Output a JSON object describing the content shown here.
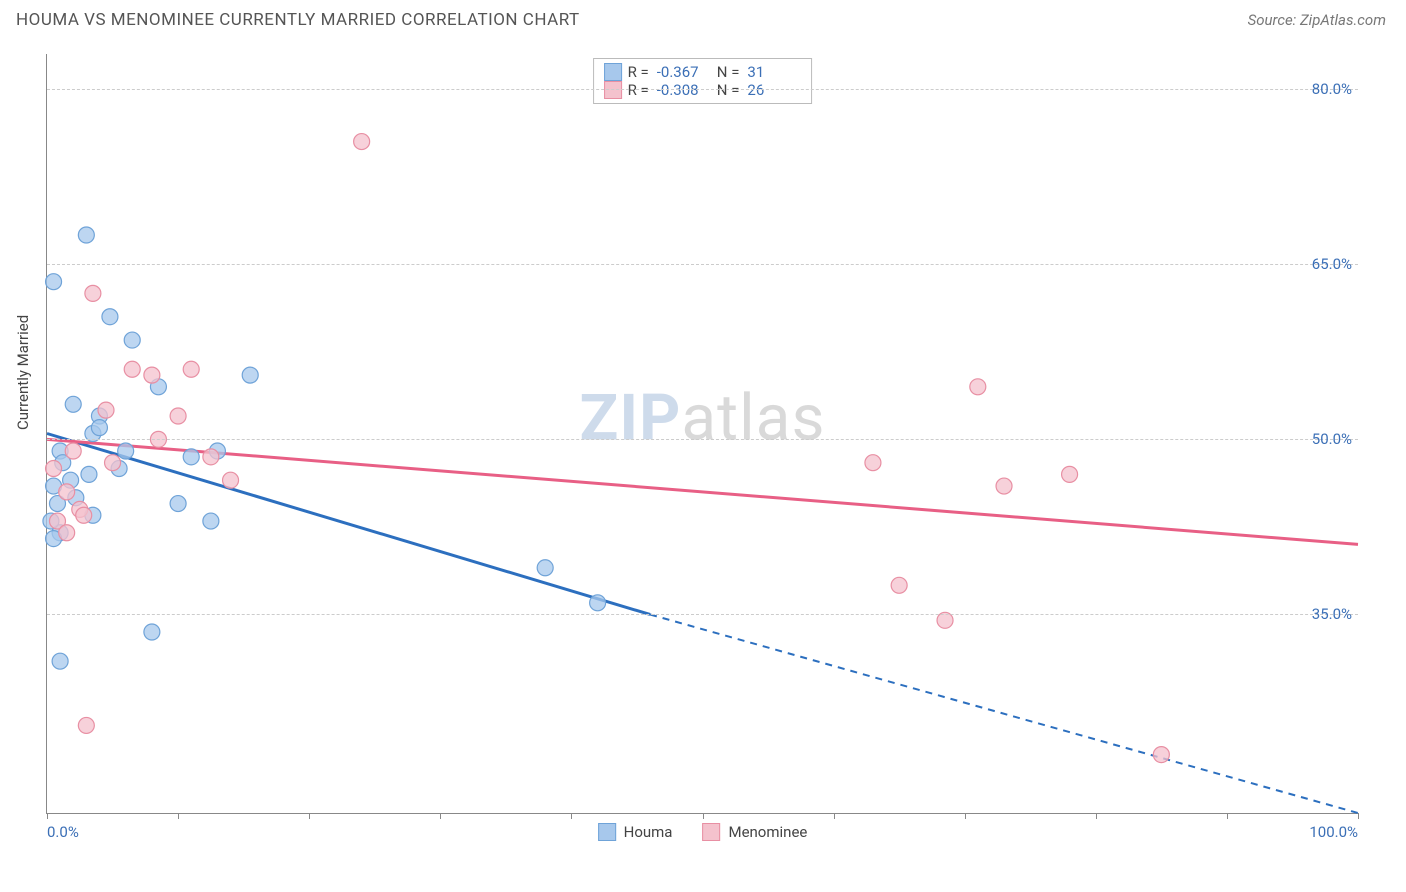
{
  "title": "HOUMA VS MENOMINEE CURRENTLY MARRIED CORRELATION CHART",
  "source": "Source: ZipAtlas.com",
  "y_axis_label": "Currently Married",
  "watermark": {
    "bold": "ZIP",
    "rest": "atlas"
  },
  "chart": {
    "type": "scatter",
    "xlim": [
      0,
      100
    ],
    "ylim": [
      18,
      83
    ],
    "x_ticks": [
      0,
      10,
      20,
      30,
      40,
      50,
      60,
      70,
      80,
      90,
      100
    ],
    "x_tick_labels": {
      "0": "0.0%",
      "100": "100.0%"
    },
    "y_grid": [
      35,
      50,
      65,
      80
    ],
    "y_tick_labels": {
      "35": "35.0%",
      "50": "50.0%",
      "65": "65.0%",
      "80": "80.0%"
    },
    "grid_color": "#cccccc",
    "axis_color": "#888888",
    "background_color": "#ffffff",
    "marker_radius": 8,
    "marker_stroke_width": 1.2,
    "series": [
      {
        "name": "Houma",
        "color_fill": "#a7c8ec",
        "color_stroke": "#6fa3d8",
        "line_color": "#2c6fbf",
        "line_width": 3,
        "r_value": "-0.367",
        "n_value": "31",
        "points": [
          [
            0.5,
            63.5
          ],
          [
            3.0,
            67.5
          ],
          [
            1.0,
            49.0
          ],
          [
            1.2,
            48.0
          ],
          [
            4.8,
            60.5
          ],
          [
            6.5,
            58.5
          ],
          [
            0.8,
            44.5
          ],
          [
            3.5,
            50.5
          ],
          [
            2.0,
            53.0
          ],
          [
            1.0,
            42.0
          ],
          [
            3.2,
            47.0
          ],
          [
            4.0,
            52.0
          ],
          [
            5.5,
            47.5
          ],
          [
            8.5,
            54.5
          ],
          [
            2.2,
            45.0
          ],
          [
            0.5,
            46.0
          ],
          [
            3.5,
            43.5
          ],
          [
            6.0,
            49.0
          ],
          [
            10.0,
            44.5
          ],
          [
            12.5,
            43.0
          ],
          [
            0.3,
            43.0
          ],
          [
            1.0,
            31.0
          ],
          [
            8.0,
            33.5
          ],
          [
            15.5,
            55.5
          ],
          [
            11.0,
            48.5
          ],
          [
            13.0,
            49.0
          ],
          [
            4.0,
            51.0
          ],
          [
            0.5,
            41.5
          ],
          [
            1.8,
            46.5
          ],
          [
            38.0,
            39.0
          ],
          [
            42.0,
            36.0
          ]
        ],
        "trend": {
          "solid": {
            "x1": 0,
            "y1": 50.5,
            "x2": 46,
            "y2": 35.0
          },
          "dashed": {
            "x1": 46,
            "y1": 35.0,
            "x2": 100,
            "y2": 18.0
          }
        }
      },
      {
        "name": "Menominee",
        "color_fill": "#f4c2cd",
        "color_stroke": "#e88fa3",
        "line_color": "#e85f85",
        "line_width": 3,
        "r_value": "-0.308",
        "n_value": "26",
        "points": [
          [
            3.5,
            62.5
          ],
          [
            24.0,
            75.5
          ],
          [
            6.5,
            56.0
          ],
          [
            8.0,
            55.5
          ],
          [
            11.0,
            56.0
          ],
          [
            2.0,
            49.0
          ],
          [
            4.5,
            52.5
          ],
          [
            10.0,
            52.0
          ],
          [
            1.5,
            45.5
          ],
          [
            2.5,
            44.0
          ],
          [
            0.8,
            43.0
          ],
          [
            5.0,
            48.0
          ],
          [
            8.5,
            50.0
          ],
          [
            12.5,
            48.5
          ],
          [
            14.0,
            46.5
          ],
          [
            1.5,
            42.0
          ],
          [
            2.8,
            43.5
          ],
          [
            0.5,
            47.5
          ],
          [
            3.0,
            25.5
          ],
          [
            63.0,
            48.0
          ],
          [
            71.0,
            54.5
          ],
          [
            73.0,
            46.0
          ],
          [
            78.0,
            47.0
          ],
          [
            65.0,
            37.5
          ],
          [
            68.5,
            34.5
          ],
          [
            85.0,
            23.0
          ]
        ],
        "trend": {
          "solid": {
            "x1": 0,
            "y1": 50.0,
            "x2": 100,
            "y2": 41.0
          }
        }
      }
    ]
  },
  "legend_top_labels": {
    "r": "R =",
    "n": "N ="
  },
  "legend_bottom": [
    {
      "label": "Houma",
      "color": "#a7c8ec",
      "stroke": "#6fa3d8"
    },
    {
      "label": "Menominee",
      "color": "#f4c2cd",
      "stroke": "#e88fa3"
    }
  ]
}
